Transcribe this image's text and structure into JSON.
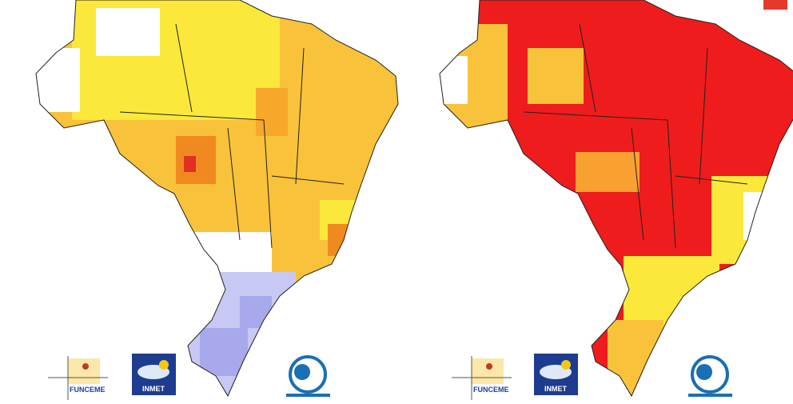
{
  "panels": [
    {
      "logos": {
        "funceme": "FUNCEME",
        "inmet": "INMET"
      }
    },
    {
      "logos": {
        "funceme": "FUNCEME",
        "inmet": "INMET"
      }
    }
  ]
}
